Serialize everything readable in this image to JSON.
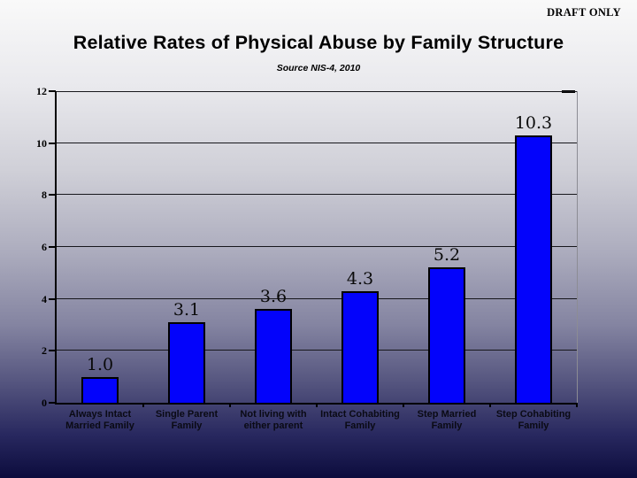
{
  "page": {
    "draft_label": "DRAFT ONLY"
  },
  "chart_data": {
    "type": "bar",
    "title": "Relative Rates of Physical Abuse by Family Structure",
    "subtitle": "Source NIS-4, 2010",
    "categories": [
      "Always Intact Married Family",
      "Single Parent Family",
      "Not living with either parent",
      "Intact Cohabiting Family",
      "Step Married Family",
      "Step Cohabiting Family"
    ],
    "category_lines": [
      [
        "Always Intact",
        "Married Family"
      ],
      [
        "Single Parent",
        "Family"
      ],
      [
        "Not living with",
        "either parent"
      ],
      [
        "Intact Cohabiting",
        "Family"
      ],
      [
        "Step Married",
        "Family"
      ],
      [
        "Step Cohabiting",
        "Family"
      ]
    ],
    "values": [
      1.0,
      3.1,
      3.6,
      4.3,
      5.2,
      10.3
    ],
    "data_labels": [
      "1.0",
      "3.1",
      "3.6",
      "4.3",
      "5.2",
      "10.3"
    ],
    "y_ticks": [
      0,
      2,
      4,
      6,
      8,
      10,
      12
    ],
    "ylim": [
      0,
      12
    ],
    "xlabel": "",
    "ylabel": "",
    "grid": "horizontal",
    "legend": "none",
    "bar_color": "#0303fb",
    "bar_border_color": "#000000",
    "gridline_color": "#17171c"
  }
}
